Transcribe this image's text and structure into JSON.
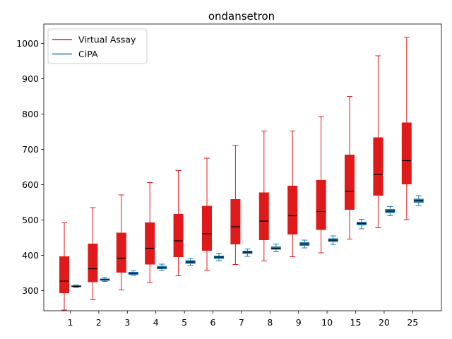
{
  "chart_data": {
    "type": "box",
    "title": "ondansetron",
    "xlabel": "",
    "ylabel": "",
    "categories": [
      "1",
      "2",
      "3",
      "4",
      "5",
      "6",
      "7",
      "8",
      "9",
      "10",
      "15",
      "20",
      "25"
    ],
    "y_ticks": [
      300,
      400,
      500,
      600,
      700,
      800,
      900,
      1000
    ],
    "ylim": [
      243,
      1055
    ],
    "grid": false,
    "legend_position": "upper-left",
    "series": [
      {
        "name": "Virtual Assay",
        "color": "#e01a1a",
        "box_fill": "#e01a1a",
        "median_color": "#000000",
        "boxes": [
          {
            "whislo": 245,
            "q1": 294,
            "med": 327,
            "q3": 396,
            "whishi": 492
          },
          {
            "whislo": 274,
            "q1": 325,
            "med": 362,
            "q3": 432,
            "whishi": 535
          },
          {
            "whislo": 302,
            "q1": 352,
            "med": 392,
            "q3": 463,
            "whishi": 571
          },
          {
            "whislo": 322,
            "q1": 375,
            "med": 420,
            "q3": 492,
            "whishi": 606
          },
          {
            "whislo": 342,
            "q1": 396,
            "med": 441,
            "q3": 516,
            "whishi": 640
          },
          {
            "whislo": 358,
            "q1": 414,
            "med": 461,
            "q3": 539,
            "whishi": 675
          },
          {
            "whislo": 374,
            "q1": 432,
            "med": 481,
            "q3": 558,
            "whishi": 711
          },
          {
            "whislo": 384,
            "q1": 444,
            "med": 497,
            "q3": 577,
            "whishi": 752
          },
          {
            "whislo": 396,
            "q1": 460,
            "med": 512,
            "q3": 596,
            "whishi": 752
          },
          {
            "whislo": 407,
            "q1": 473,
            "med": 524,
            "q3": 612,
            "whishi": 793
          },
          {
            "whislo": 446,
            "q1": 530,
            "med": 581,
            "q3": 684,
            "whishi": 850
          },
          {
            "whislo": 478,
            "q1": 570,
            "med": 629,
            "q3": 733,
            "whishi": 965
          },
          {
            "whislo": 501,
            "q1": 602,
            "med": 668,
            "q3": 775,
            "whishi": 1017
          }
        ]
      },
      {
        "name": "CiPA",
        "color": "#1f77b4",
        "box_fill": "#1f77b4",
        "median_color": "#000000",
        "boxes": [
          {
            "whislo": 309,
            "q1": 311,
            "med": 312,
            "q3": 314,
            "whishi": 316
          },
          {
            "whislo": 326,
            "q1": 329,
            "med": 331,
            "q3": 333,
            "whishi": 337
          },
          {
            "whislo": 343,
            "q1": 346,
            "med": 349,
            "q3": 352,
            "whishi": 356
          },
          {
            "whislo": 357,
            "q1": 362,
            "med": 365,
            "q3": 369,
            "whishi": 375
          },
          {
            "whislo": 372,
            "q1": 377,
            "med": 381,
            "q3": 385,
            "whishi": 391
          },
          {
            "whislo": 385,
            "q1": 391,
            "med": 395,
            "q3": 398,
            "whishi": 406
          },
          {
            "whislo": 397,
            "q1": 405,
            "med": 409,
            "q3": 412,
            "whishi": 418
          },
          {
            "whislo": 410,
            "q1": 417,
            "med": 420,
            "q3": 424,
            "whishi": 432
          },
          {
            "whislo": 421,
            "q1": 428,
            "med": 432,
            "q3": 436,
            "whishi": 443
          },
          {
            "whislo": 431,
            "q1": 439,
            "med": 443,
            "q3": 447,
            "whishi": 455
          },
          {
            "whislo": 475,
            "q1": 486,
            "med": 490,
            "q3": 494,
            "whishi": 502
          },
          {
            "whislo": 512,
            "q1": 521,
            "med": 525,
            "q3": 530,
            "whishi": 538
          },
          {
            "whislo": 541,
            "q1": 550,
            "med": 555,
            "q3": 559,
            "whishi": 569
          }
        ]
      }
    ]
  }
}
